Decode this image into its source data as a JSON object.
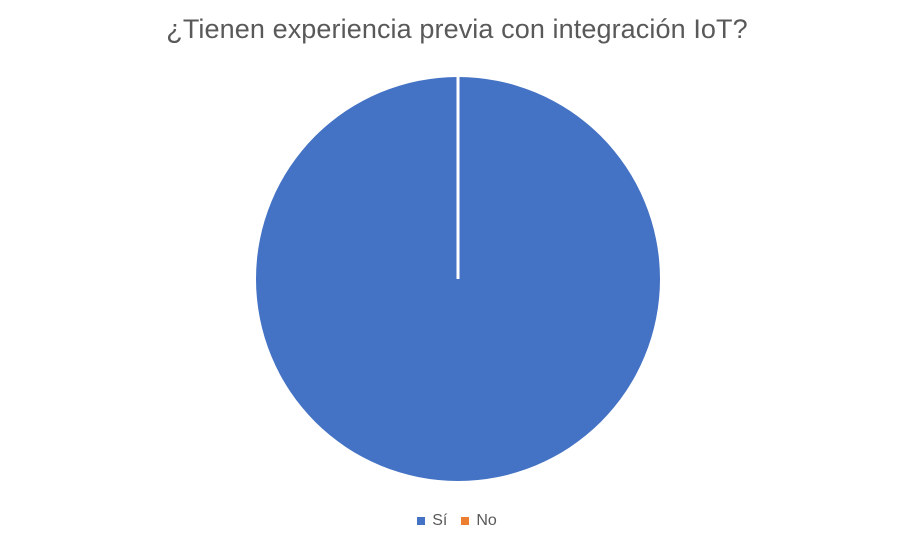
{
  "chart_data": {
    "type": "pie",
    "title": "¿Tienen experiencia previa con integración IoT?",
    "categories": [
      "Sí",
      "No"
    ],
    "values": [
      100,
      0
    ],
    "colors": [
      "#4472C4",
      "#ED7D31"
    ],
    "legend_position": "bottom"
  }
}
